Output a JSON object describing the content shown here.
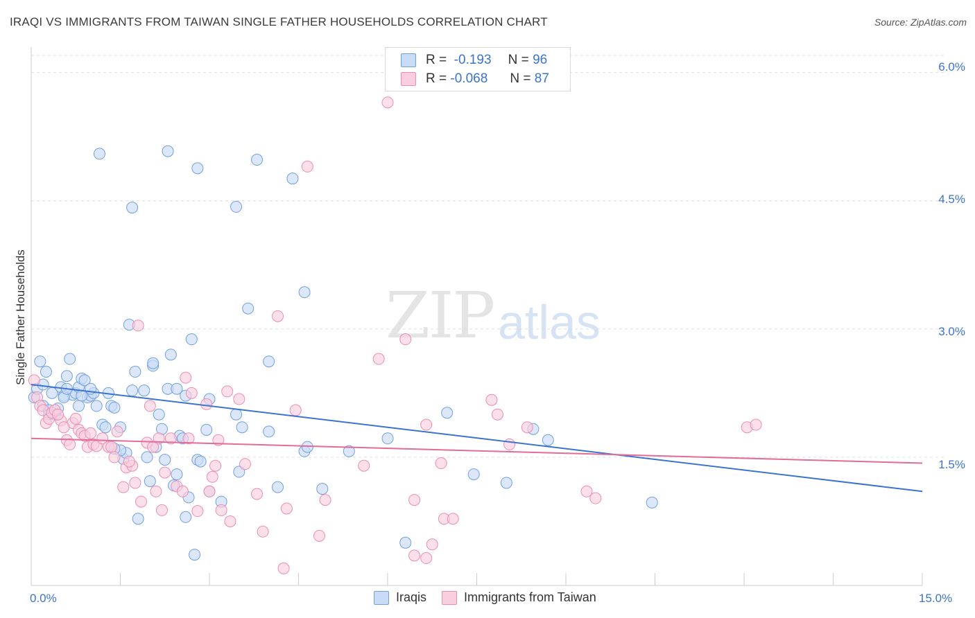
{
  "title": "IRAQI VS IMMIGRANTS FROM TAIWAN SINGLE FATHER HOUSEHOLDS CORRELATION CHART",
  "source": "Source: ZipAtlas.com",
  "watermark": {
    "zip": "ZIP",
    "atlas": "atlas"
  },
  "legend": {
    "r_label": "R =",
    "n_label": "N =",
    "series": [
      {
        "r": "-0.193",
        "n": "96"
      },
      {
        "r": "-0.068",
        "n": "87"
      }
    ]
  },
  "colors": {
    "blue_fill": "#c9dcf7",
    "blue_stroke": "#6f9fe0",
    "blue_line": "#3b73d1",
    "pink_fill": "#f9cede",
    "pink_stroke": "#ec8db0",
    "pink_line": "#e46a97",
    "grid": "#dddddd",
    "tick_text": "#3b73d1"
  },
  "chart_data": {
    "type": "scatter",
    "title": "IRAQI VS IMMIGRANTS FROM TAIWAN SINGLE FATHER HOUSEHOLDS CORRELATION CHART",
    "xlabel": "",
    "ylabel": "Single Father Households",
    "xlim": [
      0,
      15
    ],
    "ylim": [
      0,
      6.2
    ],
    "x_tick_labels": [
      "0.0%",
      "15.0%"
    ],
    "y_ticks": [
      1.5,
      3.0,
      4.5,
      6.0
    ],
    "y_tick_labels": [
      "1.5%",
      "3.0%",
      "4.5%",
      "6.0%"
    ],
    "legend_position": "top-center",
    "series": [
      {
        "name": "Iraqis",
        "trend": {
          "x": [
            0,
            15
          ],
          "y": [
            2.35,
            1.1
          ]
        },
        "points": [
          [
            0.05,
            2.2
          ],
          [
            0.1,
            2.3
          ],
          [
            0.15,
            2.62
          ],
          [
            0.2,
            2.1
          ],
          [
            0.25,
            2.5
          ],
          [
            0.3,
            2.05
          ],
          [
            0.35,
            2.25
          ],
          [
            0.4,
            2.0
          ],
          [
            0.45,
            2.07
          ],
          [
            0.5,
            2.32
          ],
          [
            0.55,
            2.22
          ],
          [
            0.6,
            2.45
          ],
          [
            0.65,
            2.65
          ],
          [
            0.7,
            2.23
          ],
          [
            0.75,
            2.25
          ],
          [
            0.8,
            2.32
          ],
          [
            0.85,
            2.42
          ],
          [
            0.9,
            2.4
          ],
          [
            0.95,
            2.2
          ],
          [
            1.0,
            2.22
          ],
          [
            1.05,
            2.25
          ],
          [
            1.1,
            2.1
          ],
          [
            1.2,
            1.88
          ],
          [
            1.3,
            2.25
          ],
          [
            1.35,
            2.1
          ],
          [
            1.4,
            2.08
          ],
          [
            1.5,
            1.85
          ],
          [
            1.55,
            1.48
          ],
          [
            1.6,
            1.55
          ],
          [
            1.7,
            2.28
          ],
          [
            1.75,
            2.5
          ],
          [
            1.8,
            0.78
          ],
          [
            1.9,
            2.28
          ],
          [
            2.0,
            1.22
          ],
          [
            2.05,
            2.57
          ],
          [
            2.1,
            1.62
          ],
          [
            2.15,
            2.0
          ],
          [
            2.2,
            1.83
          ],
          [
            2.25,
            1.47
          ],
          [
            2.3,
            2.3
          ],
          [
            2.35,
            2.7
          ],
          [
            2.4,
            1.17
          ],
          [
            2.45,
            2.3
          ],
          [
            2.5,
            1.75
          ],
          [
            2.6,
            0.8
          ],
          [
            2.65,
            1.03
          ],
          [
            2.7,
            2.88
          ],
          [
            2.8,
            1.47
          ],
          [
            2.85,
            1.45
          ],
          [
            2.95,
            1.82
          ],
          [
            3.2,
            0.98
          ],
          [
            3.45,
            2.0
          ],
          [
            3.5,
            1.33
          ],
          [
            3.55,
            1.85
          ],
          [
            3.65,
            3.24
          ],
          [
            3.8,
            4.98
          ],
          [
            4.0,
            2.62
          ],
          [
            4.15,
            1.15
          ],
          [
            4.4,
            4.76
          ],
          [
            4.6,
            1.57
          ],
          [
            4.65,
            1.62
          ],
          [
            4.9,
            1.13
          ],
          [
            5.35,
            1.57
          ],
          [
            6.0,
            1.72
          ],
          [
            6.3,
            0.5
          ],
          [
            7.0,
            2.02
          ],
          [
            7.45,
            1.3
          ],
          [
            8.0,
            1.2
          ],
          [
            8.45,
            1.83
          ],
          [
            8.7,
            1.7
          ],
          [
            10.45,
            0.97
          ],
          [
            1.15,
            5.05
          ],
          [
            1.7,
            4.42
          ],
          [
            2.3,
            5.08
          ],
          [
            2.8,
            4.88
          ],
          [
            3.45,
            4.43
          ],
          [
            4.6,
            3.43
          ],
          [
            1.65,
            3.05
          ],
          [
            2.05,
            2.6
          ],
          [
            2.6,
            2.22
          ],
          [
            3.0,
            2.18
          ],
          [
            1.25,
            1.85
          ],
          [
            1.5,
            1.58
          ],
          [
            2.55,
            1.72
          ],
          [
            0.85,
            2.22
          ],
          [
            0.55,
            2.2
          ],
          [
            0.3,
            2.0
          ],
          [
            1.0,
            2.3
          ],
          [
            0.2,
            2.35
          ],
          [
            1.4,
            1.6
          ],
          [
            2.75,
            0.36
          ],
          [
            3.0,
            1.1
          ],
          [
            4.0,
            1.8
          ],
          [
            0.6,
            2.3
          ],
          [
            1.95,
            1.5
          ],
          [
            2.45,
            1.3
          ],
          [
            0.8,
            2.1
          ]
        ]
      },
      {
        "name": "Immigrants from Taiwan",
        "trend": {
          "x": [
            0,
            15
          ],
          "y": [
            1.72,
            1.43
          ]
        },
        "points": [
          [
            0.05,
            2.4
          ],
          [
            0.1,
            2.2
          ],
          [
            0.15,
            2.1
          ],
          [
            0.2,
            2.05
          ],
          [
            0.25,
            1.9
          ],
          [
            0.3,
            1.95
          ],
          [
            0.35,
            2.02
          ],
          [
            0.4,
            2.05
          ],
          [
            0.5,
            1.93
          ],
          [
            0.6,
            1.7
          ],
          [
            0.65,
            1.65
          ],
          [
            0.7,
            1.9
          ],
          [
            0.75,
            1.95
          ],
          [
            0.8,
            1.82
          ],
          [
            0.85,
            1.78
          ],
          [
            0.9,
            1.75
          ],
          [
            0.95,
            1.62
          ],
          [
            1.0,
            1.78
          ],
          [
            1.05,
            1.65
          ],
          [
            1.1,
            1.63
          ],
          [
            1.2,
            1.72
          ],
          [
            1.3,
            1.62
          ],
          [
            1.35,
            1.62
          ],
          [
            1.4,
            1.5
          ],
          [
            1.45,
            1.8
          ],
          [
            1.55,
            1.15
          ],
          [
            1.6,
            1.38
          ],
          [
            1.7,
            1.4
          ],
          [
            1.75,
            1.2
          ],
          [
            1.8,
            3.04
          ],
          [
            1.85,
            0.98
          ],
          [
            1.95,
            1.67
          ],
          [
            2.0,
            2.1
          ],
          [
            2.05,
            1.62
          ],
          [
            2.1,
            1.1
          ],
          [
            2.15,
            1.72
          ],
          [
            2.2,
            0.88
          ],
          [
            2.25,
            1.32
          ],
          [
            2.35,
            1.72
          ],
          [
            2.45,
            1.16
          ],
          [
            2.55,
            1.1
          ],
          [
            2.6,
            2.43
          ],
          [
            2.7,
            2.25
          ],
          [
            2.8,
            0.87
          ],
          [
            2.95,
            2.12
          ],
          [
            3.0,
            1.1
          ],
          [
            3.05,
            1.27
          ],
          [
            3.1,
            1.4
          ],
          [
            3.2,
            0.88
          ],
          [
            3.3,
            2.27
          ],
          [
            3.35,
            0.75
          ],
          [
            3.5,
            2.18
          ],
          [
            3.6,
            1.42
          ],
          [
            3.8,
            1.07
          ],
          [
            3.9,
            0.63
          ],
          [
            4.15,
            3.15
          ],
          [
            4.3,
            0.9
          ],
          [
            4.45,
            2.05
          ],
          [
            4.65,
            4.9
          ],
          [
            4.85,
            0.58
          ],
          [
            4.95,
            1.0
          ],
          [
            5.6,
            1.4
          ],
          [
            5.85,
            2.65
          ],
          [
            6.0,
            5.65
          ],
          [
            6.3,
            2.88
          ],
          [
            6.45,
            1.0
          ],
          [
            6.45,
            0.35
          ],
          [
            6.65,
            0.32
          ],
          [
            6.65,
            1.88
          ],
          [
            6.75,
            0.48
          ],
          [
            6.9,
            1.43
          ],
          [
            6.95,
            0.78
          ],
          [
            7.1,
            0.78
          ],
          [
            7.75,
            2.17
          ],
          [
            7.85,
            2.0
          ],
          [
            8.05,
            1.65
          ],
          [
            8.35,
            1.85
          ],
          [
            9.35,
            1.1
          ],
          [
            9.5,
            1.02
          ],
          [
            12.05,
            1.85
          ],
          [
            12.2,
            1.88
          ],
          [
            4.25,
            0.2
          ],
          [
            0.45,
            2.0
          ],
          [
            1.65,
            1.45
          ],
          [
            2.65,
            1.72
          ],
          [
            3.15,
            1.7
          ],
          [
            0.55,
            1.85
          ]
        ]
      }
    ]
  },
  "bottom_legend": [
    "Iraqis",
    "Immigrants from Taiwan"
  ]
}
